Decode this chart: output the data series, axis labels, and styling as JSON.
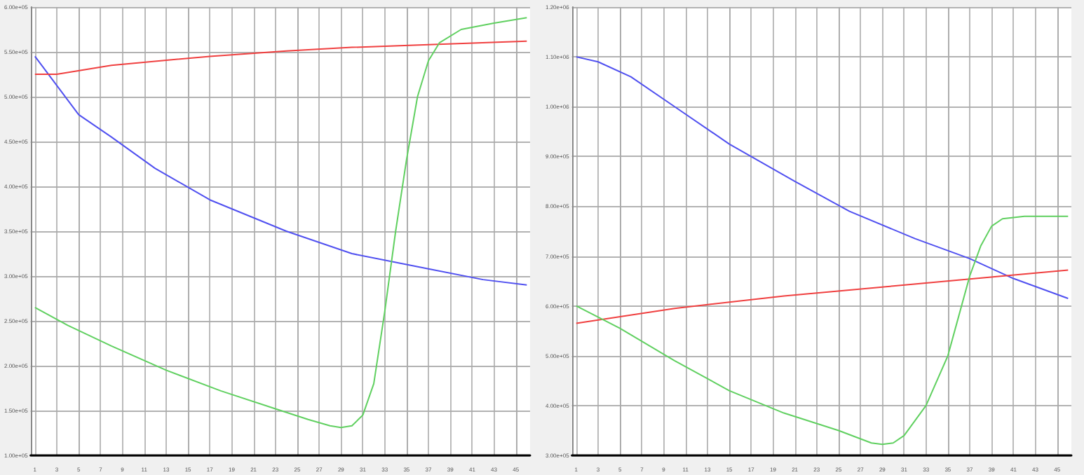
{
  "chart_data": [
    {
      "type": "line",
      "xlim": [
        0.6,
        46.3
      ],
      "xticks": [
        1,
        3,
        5,
        7,
        9,
        11,
        13,
        15,
        17,
        19,
        21,
        23,
        25,
        27,
        29,
        31,
        33,
        35,
        37,
        39,
        41,
        43,
        45
      ],
      "ylim": [
        100000,
        600000
      ],
      "yticks": [
        {
          "value": 100000,
          "label": "1.00e+05"
        },
        {
          "value": 150000,
          "label": "1.50e+05"
        },
        {
          "value": 200000,
          "label": "2.00e+05"
        },
        {
          "value": 250000,
          "label": "2.50e+05"
        },
        {
          "value": 300000,
          "label": "3.00e+05"
        },
        {
          "value": 350000,
          "label": "3.50e+05"
        },
        {
          "value": 400000,
          "label": "4.00e+05"
        },
        {
          "value": 450000,
          "label": "4.50e+05"
        },
        {
          "value": 500000,
          "label": "5.00e+05"
        },
        {
          "value": 550000,
          "label": "5.50e+05"
        },
        {
          "value": 600000,
          "label": "6.00e+05"
        }
      ],
      "grid": true,
      "marker": "none",
      "line_style": "solid",
      "series": [
        {
          "color": "#5050f0",
          "x": [
            1,
            5,
            8,
            12,
            17,
            24,
            30,
            37,
            42,
            46
          ],
          "values": [
            545000,
            480000,
            455000,
            420000,
            385000,
            350000,
            325000,
            308000,
            296000,
            290000
          ]
        },
        {
          "color": "#f04040",
          "x": [
            1,
            3,
            8,
            17,
            24,
            30,
            37,
            46
          ],
          "values": [
            525000,
            525000,
            535000,
            545000,
            551000,
            555000,
            558000,
            562000
          ]
        },
        {
          "color": "#60d060",
          "x": [
            1,
            4,
            8,
            13,
            18,
            23,
            26,
            28,
            29,
            30,
            31,
            32,
            33,
            34,
            35,
            36,
            37,
            38,
            40,
            43,
            46
          ],
          "values": [
            265000,
            245000,
            222000,
            195000,
            172000,
            152000,
            140000,
            133000,
            131000,
            133000,
            145000,
            180000,
            260000,
            350000,
            430000,
            500000,
            540000,
            560000,
            575000,
            582000,
            588000
          ]
        }
      ]
    },
    {
      "type": "line",
      "xlim": [
        0.6,
        46.3
      ],
      "xticks": [
        1,
        3,
        5,
        7,
        9,
        11,
        13,
        15,
        17,
        19,
        21,
        23,
        25,
        27,
        29,
        31,
        33,
        35,
        37,
        39,
        41,
        43,
        45
      ],
      "ylim": [
        300000,
        1200000
      ],
      "yticks": [
        {
          "value": 300000,
          "label": "3.00e+05"
        },
        {
          "value": 400000,
          "label": "4.00e+05"
        },
        {
          "value": 500000,
          "label": "5.00e+05"
        },
        {
          "value": 600000,
          "label": "6.00e+05"
        },
        {
          "value": 700000,
          "label": "7.00e+05"
        },
        {
          "value": 800000,
          "label": "8.00e+05"
        },
        {
          "value": 900000,
          "label": "9.00e+05"
        },
        {
          "value": 1000000,
          "label": "1.00e+06"
        },
        {
          "value": 1100000,
          "label": "1.10e+06"
        },
        {
          "value": 1200000,
          "label": "1.20e+06"
        }
      ],
      "grid": true,
      "marker": "none",
      "line_style": "solid",
      "series": [
        {
          "color": "#5050f0",
          "x": [
            1,
            3,
            6,
            10,
            15,
            21,
            26,
            32,
            37,
            41,
            46
          ],
          "values": [
            1100000,
            1090000,
            1060000,
            1000000,
            925000,
            850000,
            790000,
            735000,
            695000,
            655000,
            615000
          ]
        },
        {
          "color": "#f04040",
          "x": [
            1,
            10,
            20,
            30,
            40,
            46
          ],
          "values": [
            565000,
            595000,
            620000,
            640000,
            660000,
            672000
          ]
        },
        {
          "color": "#60d060",
          "x": [
            1,
            5,
            10,
            15,
            20,
            25,
            28,
            29,
            30,
            31,
            33,
            35,
            36,
            37,
            38,
            39,
            40,
            42,
            46
          ],
          "values": [
            600000,
            555000,
            490000,
            430000,
            385000,
            350000,
            325000,
            322000,
            325000,
            340000,
            400000,
            500000,
            580000,
            660000,
            720000,
            760000,
            775000,
            780000,
            780000
          ]
        }
      ]
    }
  ]
}
